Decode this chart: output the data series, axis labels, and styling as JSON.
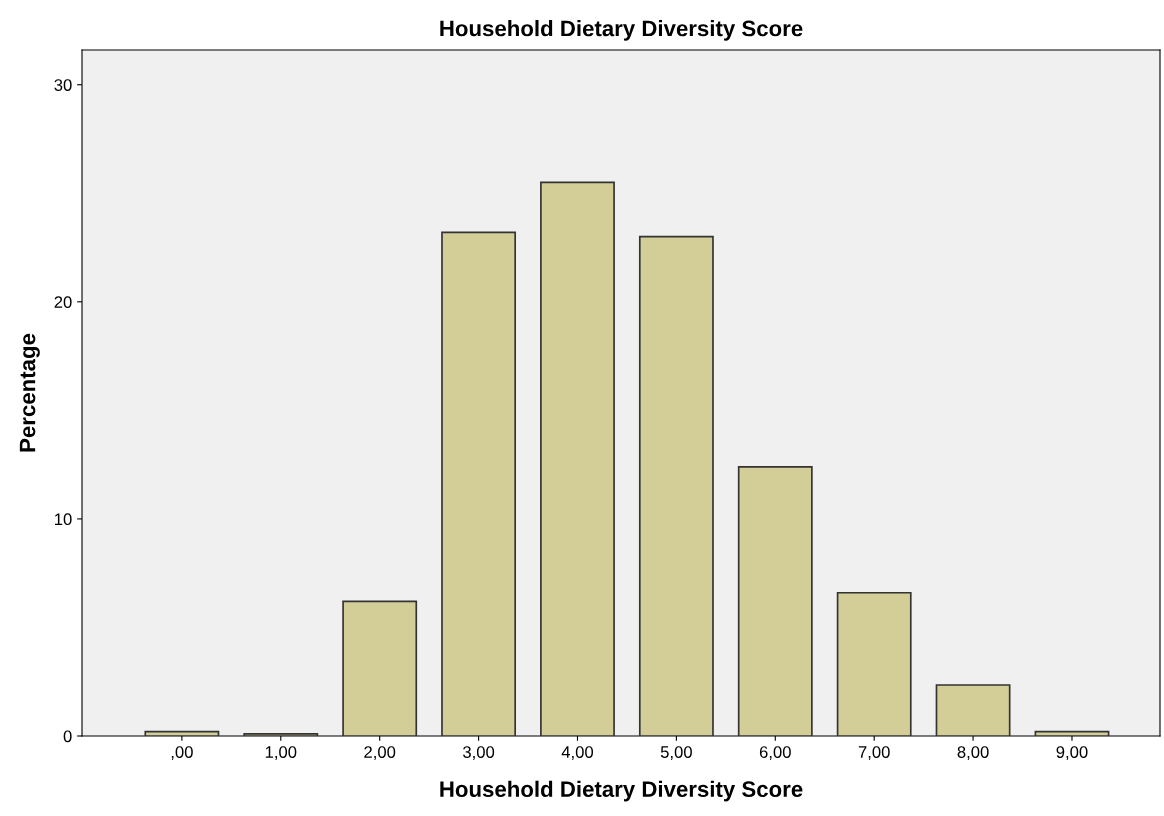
{
  "chart_data": {
    "type": "bar",
    "title": "Household Dietary Diversity Score",
    "xlabel": "Household Dietary Diversity Score",
    "ylabel": "Percentage",
    "categories": [
      ",00",
      "1,00",
      "2,00",
      "3,00",
      "4,00",
      "5,00",
      "6,00",
      "7,00",
      "8,00",
      "9,00"
    ],
    "values": [
      0.2,
      0.1,
      6.2,
      23.2,
      25.5,
      23.0,
      12.4,
      6.6,
      2.35,
      0.2
    ],
    "color": "#d3ce97",
    "ylim": [
      0,
      31.6
    ],
    "yticks": [
      0,
      10,
      20,
      30
    ],
    "grid": false
  }
}
